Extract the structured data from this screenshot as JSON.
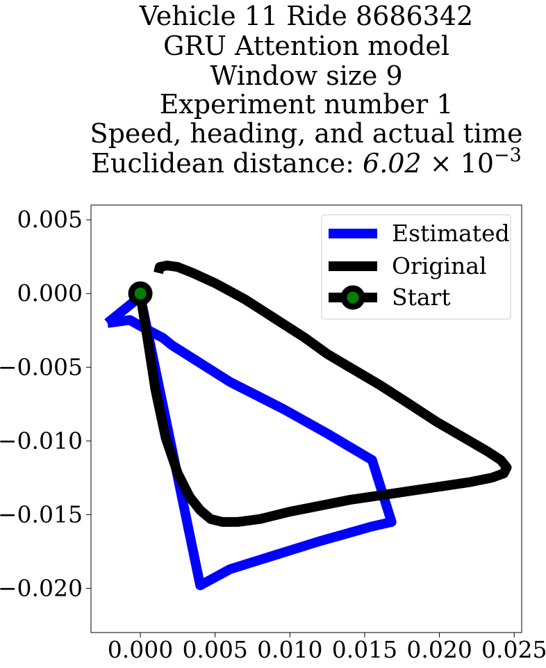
{
  "chart_data": {
    "type": "line",
    "title_lines": [
      "Vehicle 11 Ride 8686342",
      "GRU Attention model",
      "Window size 9",
      "Experiment number 1",
      "Speed, heading, and actual time"
    ],
    "title_metric": {
      "prefix": "Euclidean distance: ",
      "mantissa": "6.02",
      "times": "×",
      "base": "10",
      "exponent": "−3"
    },
    "xlabel": "",
    "ylabel": "",
    "xlim": [
      -0.0033,
      0.0255
    ],
    "ylim": [
      -0.023,
      0.006
    ],
    "x_ticks": [
      {
        "value": 0.0,
        "label": "0.000"
      },
      {
        "value": 0.005,
        "label": "0.005"
      },
      {
        "value": 0.01,
        "label": "0.010"
      },
      {
        "value": 0.015,
        "label": "0.015"
      },
      {
        "value": 0.02,
        "label": "0.020"
      },
      {
        "value": 0.025,
        "label": "0.025"
      }
    ],
    "y_ticks": [
      {
        "value": 0.005,
        "label": "0.005"
      },
      {
        "value": 0.0,
        "label": "0.000"
      },
      {
        "value": -0.005,
        "label": "−0.005"
      },
      {
        "value": -0.01,
        "label": "−0.010"
      },
      {
        "value": -0.015,
        "label": "−0.015"
      },
      {
        "value": -0.02,
        "label": "−0.020"
      }
    ],
    "grid": false,
    "legend_position": "top-right",
    "series": [
      {
        "name": "Estimated",
        "color": "#0000ff",
        "x": [
          -0.0022,
          -0.0007,
          0.0,
          0.0015,
          0.0021,
          0.006,
          0.0095,
          0.0125,
          0.0155,
          0.0168,
          0.0155,
          0.012,
          0.006,
          0.004,
          0.0,
          -0.0022
        ],
        "y": [
          -0.002,
          -0.0018,
          -0.0022,
          -0.003,
          -0.0035,
          -0.006,
          -0.0078,
          -0.0095,
          -0.0113,
          -0.0155,
          -0.0158,
          -0.0168,
          -0.0187,
          -0.0198,
          -0.0002,
          -0.002
        ]
      },
      {
        "name": "Original",
        "color": "#000000",
        "x": [
          0.0012,
          0.0013,
          0.0018,
          0.0025,
          0.0035,
          0.005,
          0.007,
          0.009,
          0.011,
          0.0125,
          0.014,
          0.016,
          0.018,
          0.0198,
          0.0215,
          0.0232,
          0.0241,
          0.0245,
          0.0243,
          0.0235,
          0.022,
          0.02,
          0.018,
          0.016,
          0.014,
          0.012,
          0.01,
          0.008,
          0.0065,
          0.0055,
          0.0047,
          0.004,
          0.0033,
          0.0025,
          0.0017,
          0.001,
          0.0005,
          0.0
        ],
        "x_note": "",
        "y": [
          0.0014,
          0.0018,
          0.0019,
          0.0018,
          0.0014,
          0.0007,
          -0.0004,
          -0.0017,
          -0.003,
          -0.0041,
          -0.005,
          -0.0062,
          -0.0075,
          -0.0087,
          -0.0097,
          -0.0107,
          -0.0113,
          -0.0118,
          -0.0122,
          -0.0125,
          -0.0128,
          -0.0131,
          -0.0134,
          -0.0137,
          -0.014,
          -0.0144,
          -0.0148,
          -0.0153,
          -0.0155,
          -0.0155,
          -0.0153,
          -0.0147,
          -0.0138,
          -0.0122,
          -0.0098,
          -0.0065,
          -0.0032,
          -0.0001
        ]
      },
      {
        "name": "Start",
        "color": "#000000",
        "marker_face": "#008000",
        "x": [
          0.0
        ],
        "y": [
          0.0
        ]
      }
    ]
  }
}
